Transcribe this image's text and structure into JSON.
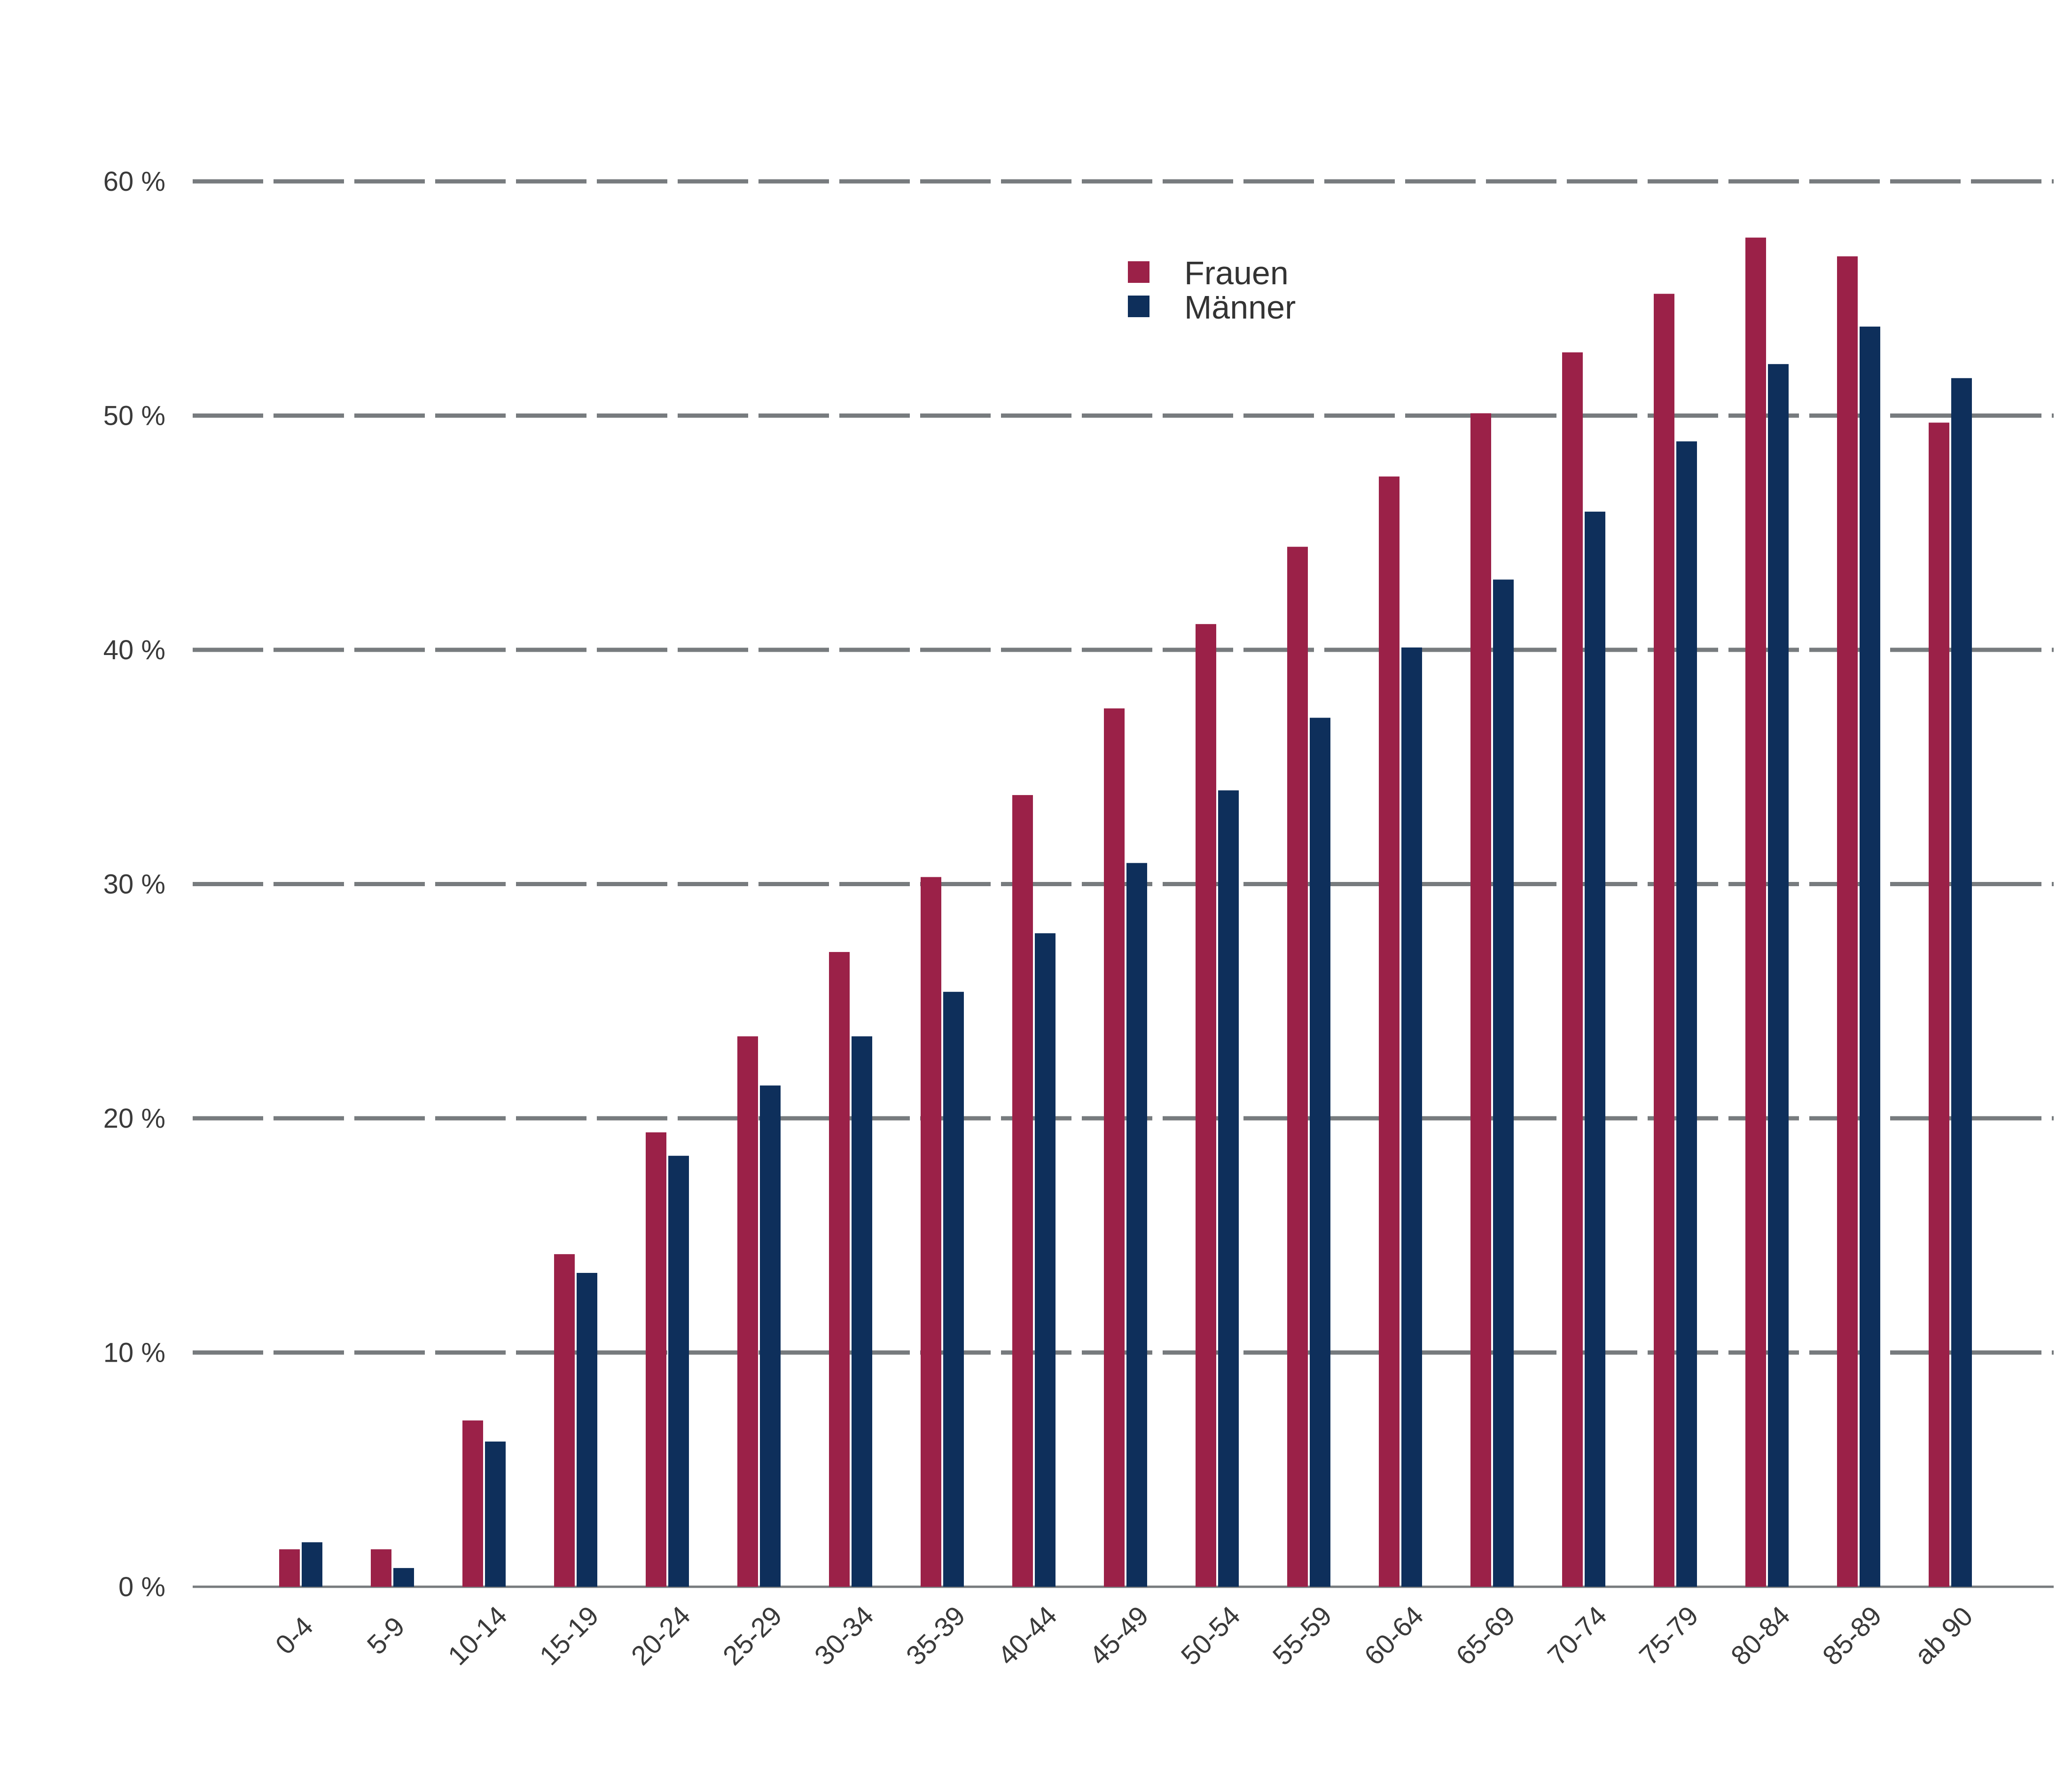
{
  "chart_data": {
    "type": "bar",
    "title": "",
    "xlabel": "",
    "ylabel": "",
    "ylim": [
      0,
      60
    ],
    "yticks": [
      0,
      10,
      20,
      30,
      40,
      50,
      60
    ],
    "ytick_labels": [
      "0 %",
      "10 %",
      "20 %",
      "30 %",
      "40 %",
      "50 %",
      "60 %"
    ],
    "grid": "dashed horizontal",
    "legend_position": "top-center",
    "categories": [
      "0-4",
      "5-9",
      "10-14",
      "15-19",
      "20-24",
      "25-29",
      "30-34",
      "35-39",
      "40-44",
      "45-49",
      "50-54",
      "55-59",
      "60-64",
      "65-69",
      "70-74",
      "75-79",
      "80-84",
      "85-89",
      "ab 90"
    ],
    "series": [
      {
        "name": "Frauen",
        "color": "#9b2148",
        "values": [
          1.6,
          1.6,
          7.1,
          14.2,
          19.4,
          23.5,
          27.1,
          30.3,
          33.8,
          37.5,
          41.1,
          44.4,
          47.4,
          50.1,
          52.7,
          55.2,
          57.6,
          56.8,
          49.7
        ]
      },
      {
        "name": "Männer",
        "color": "#0e2f5b",
        "values": [
          1.9,
          0.8,
          6.2,
          13.4,
          18.4,
          21.4,
          23.5,
          25.4,
          27.9,
          30.9,
          34.0,
          37.1,
          40.1,
          43.0,
          45.9,
          48.9,
          52.2,
          53.8,
          51.6
        ]
      }
    ]
  }
}
